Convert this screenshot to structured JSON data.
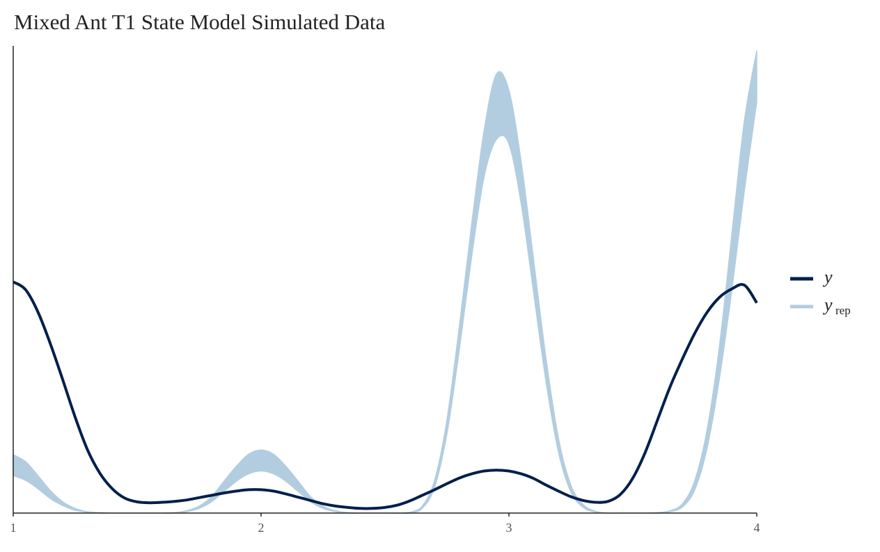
{
  "chart_data": {
    "type": "line",
    "title": "Mixed Ant T1 State Model Simulated Data",
    "xlabel": "",
    "ylabel": "",
    "xlim": [
      1,
      4
    ],
    "ylim": [
      0,
      1
    ],
    "x_ticks": [
      "1",
      "2",
      "3",
      "4"
    ],
    "legend": {
      "placement": "right",
      "entries": [
        {
          "name": "y",
          "color": "#011f4b"
        },
        {
          "name": "y",
          "subscript": "rep",
          "color": "#b3cde0"
        }
      ]
    },
    "series": [
      {
        "name": "y",
        "color": "#011f4b",
        "x": [
          1.0,
          1.05,
          1.1,
          1.15,
          1.2,
          1.25,
          1.3,
          1.35,
          1.4,
          1.45,
          1.5,
          1.55,
          1.6,
          1.65,
          1.7,
          1.75,
          1.8,
          1.85,
          1.9,
          1.95,
          2.0,
          2.05,
          2.1,
          2.15,
          2.2,
          2.25,
          2.3,
          2.35,
          2.4,
          2.45,
          2.5,
          2.55,
          2.6,
          2.65,
          2.7,
          2.75,
          2.8,
          2.85,
          2.9,
          2.95,
          3.0,
          3.05,
          3.1,
          3.15,
          3.2,
          3.25,
          3.3,
          3.35,
          3.4,
          3.45,
          3.5,
          3.55,
          3.6,
          3.65,
          3.7,
          3.75,
          3.8,
          3.85,
          3.9,
          3.95,
          4.0
        ],
        "values": [
          0.495,
          0.478,
          0.43,
          0.362,
          0.285,
          0.205,
          0.135,
          0.085,
          0.052,
          0.032,
          0.024,
          0.022,
          0.023,
          0.025,
          0.028,
          0.033,
          0.038,
          0.043,
          0.047,
          0.05,
          0.05,
          0.047,
          0.041,
          0.034,
          0.027,
          0.02,
          0.015,
          0.012,
          0.01,
          0.01,
          0.012,
          0.017,
          0.026,
          0.038,
          0.05,
          0.063,
          0.075,
          0.084,
          0.09,
          0.092,
          0.09,
          0.084,
          0.074,
          0.06,
          0.047,
          0.035,
          0.027,
          0.023,
          0.025,
          0.04,
          0.075,
          0.13,
          0.2,
          0.27,
          0.33,
          0.385,
          0.43,
          0.462,
          0.48,
          0.488,
          0.45
        ]
      },
      {
        "name": "y_rep",
        "color": "#b3cde0",
        "kind": "band",
        "x": [
          1.0,
          1.05,
          1.1,
          1.15,
          1.2,
          1.25,
          1.3,
          1.35,
          1.4,
          1.45,
          1.5,
          1.55,
          1.6,
          1.65,
          1.7,
          1.75,
          1.8,
          1.85,
          1.9,
          1.95,
          2.0,
          2.05,
          2.1,
          2.15,
          2.2,
          2.25,
          2.3,
          2.35,
          2.4,
          2.45,
          2.5,
          2.55,
          2.6,
          2.65,
          2.7,
          2.75,
          2.8,
          2.85,
          2.9,
          2.95,
          3.0,
          3.05,
          3.1,
          3.15,
          3.2,
          3.25,
          3.3,
          3.35,
          3.4,
          3.45,
          3.5,
          3.55,
          3.6,
          3.65,
          3.7,
          3.75,
          3.8,
          3.85,
          3.9,
          3.95,
          4.0
        ],
        "upper": [
          0.125,
          0.11,
          0.08,
          0.048,
          0.024,
          0.01,
          0.003,
          0.001,
          0.0,
          0.0,
          0.0,
          0.0,
          0.0,
          0.001,
          0.005,
          0.015,
          0.035,
          0.068,
          0.1,
          0.126,
          0.135,
          0.126,
          0.1,
          0.068,
          0.035,
          0.015,
          0.005,
          0.001,
          0.0,
          0.0,
          0.0,
          0.0,
          0.002,
          0.015,
          0.07,
          0.2,
          0.4,
          0.62,
          0.82,
          0.94,
          0.905,
          0.75,
          0.54,
          0.33,
          0.16,
          0.06,
          0.018,
          0.004,
          0.0,
          0.0,
          0.0,
          0.0,
          0.001,
          0.005,
          0.02,
          0.07,
          0.18,
          0.36,
          0.6,
          0.84,
          0.99
        ],
        "lower": [
          0.08,
          0.07,
          0.052,
          0.031,
          0.016,
          0.006,
          0.002,
          0.0,
          0.0,
          0.0,
          0.0,
          0.0,
          0.0,
          0.0,
          0.003,
          0.01,
          0.024,
          0.046,
          0.068,
          0.084,
          0.09,
          0.084,
          0.068,
          0.046,
          0.024,
          0.01,
          0.003,
          0.0,
          0.0,
          0.0,
          0.0,
          0.0,
          0.0,
          0.01,
          0.055,
          0.17,
          0.35,
          0.55,
          0.72,
          0.8,
          0.79,
          0.66,
          0.47,
          0.28,
          0.13,
          0.045,
          0.012,
          0.002,
          0.0,
          0.0,
          0.0,
          0.0,
          0.0,
          0.003,
          0.013,
          0.05,
          0.14,
          0.29,
          0.48,
          0.69,
          0.88
        ]
      }
    ]
  }
}
